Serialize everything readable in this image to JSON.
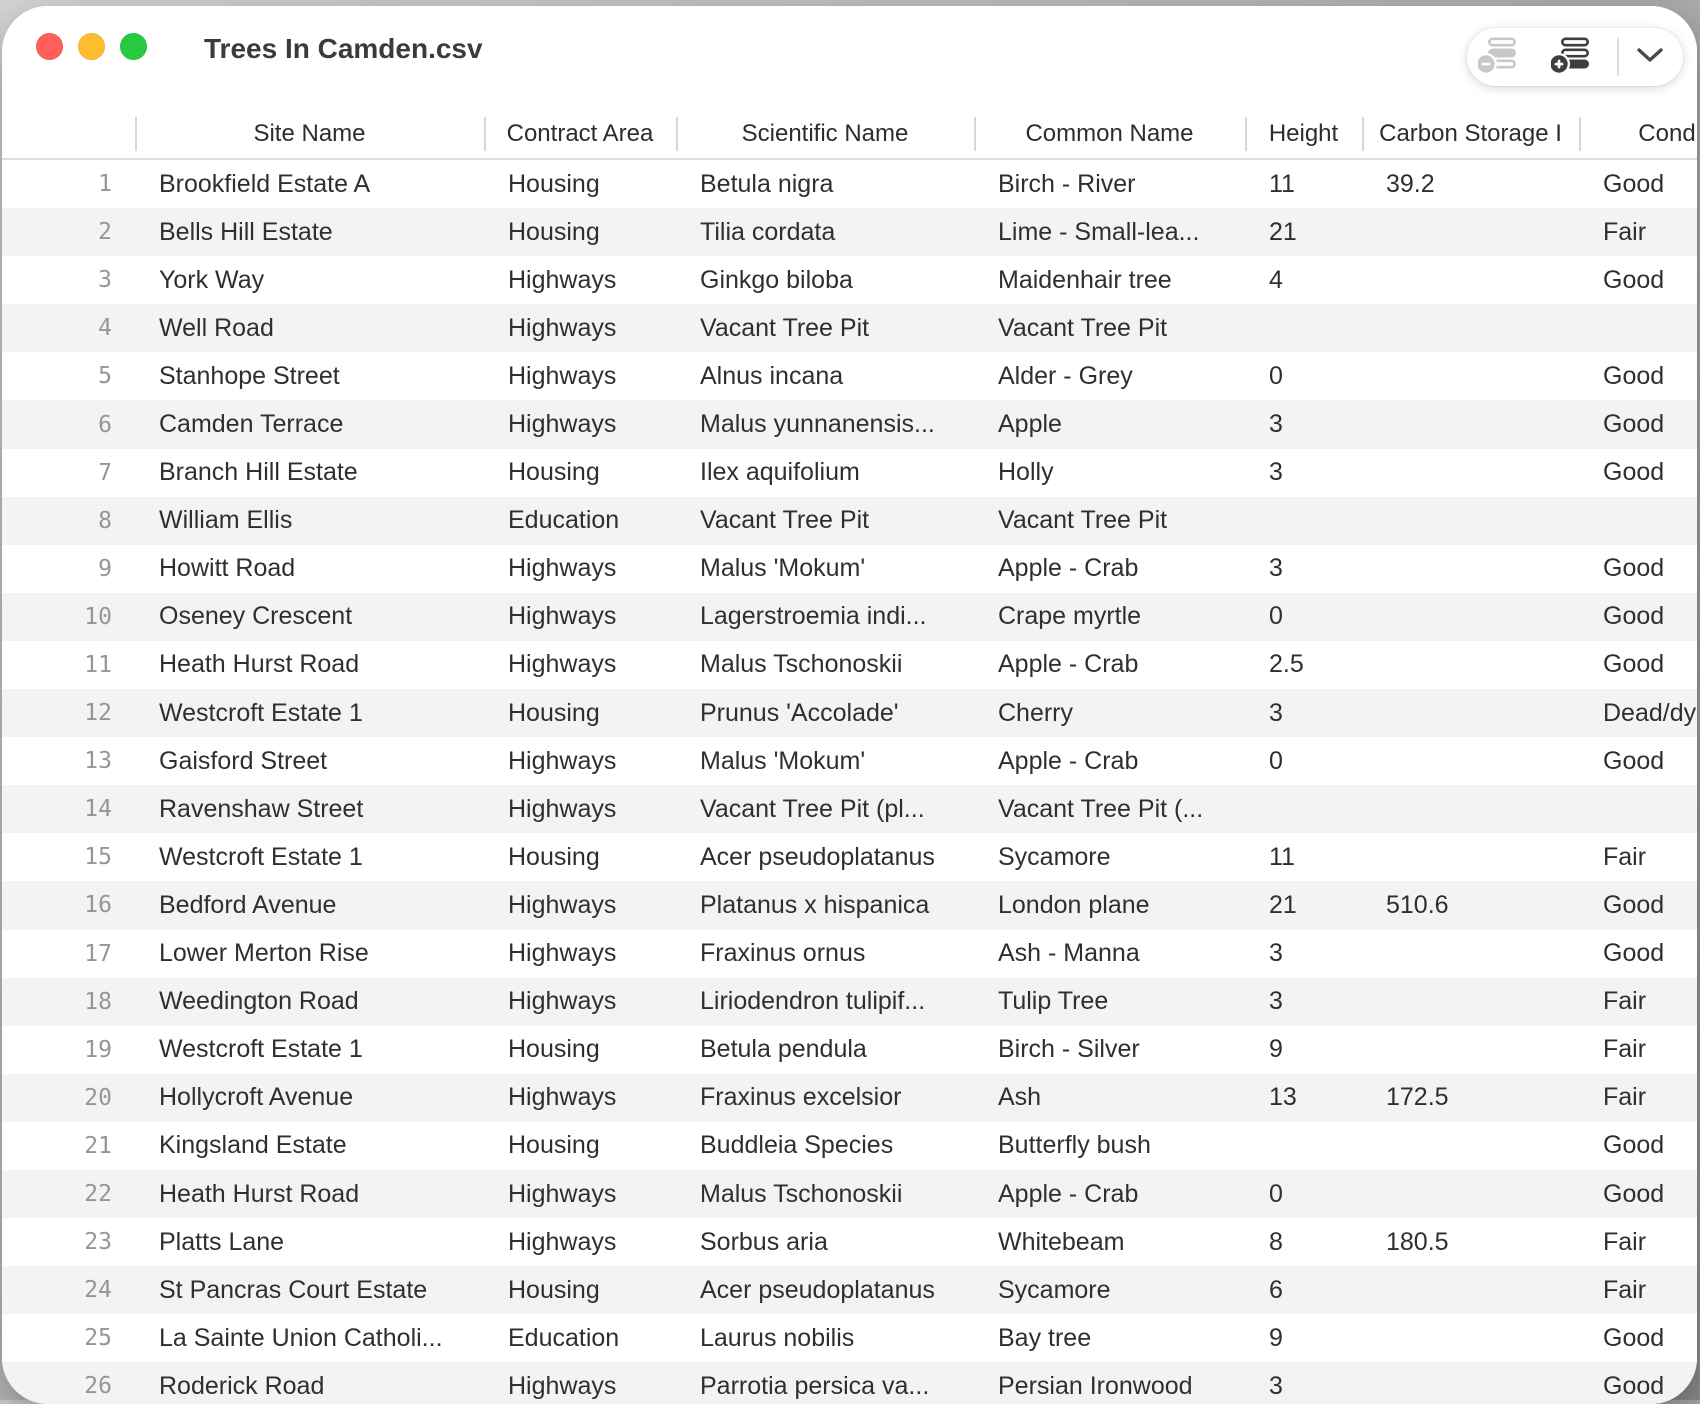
{
  "window": {
    "title": "Trees In Camden.csv",
    "traffic_lights": [
      "close",
      "minimize",
      "zoom"
    ],
    "toolbar": {
      "icons": [
        "remove-row-icon",
        "add-row-icon",
        "chevron-down-icon"
      ],
      "remove_row_disabled": true
    }
  },
  "colors": {
    "traffic_red": "#ff5f57",
    "traffic_yellow": "#febc2e",
    "traffic_green": "#28c840",
    "zebra_stripe": "#f3f3f3",
    "icon_disabled": "#c8c8c8",
    "icon_enabled": "#3e3e3e",
    "header_divider": "#d7d7d7"
  },
  "table": {
    "columns": [
      {
        "label": "Site Name"
      },
      {
        "label": "Contract Area"
      },
      {
        "label": "Scientific Name"
      },
      {
        "label": "Common Name"
      },
      {
        "label": "Height"
      },
      {
        "label": "Carbon Storage I"
      },
      {
        "label": "Condition"
      }
    ],
    "rows": [
      {
        "num": "1",
        "site": "Brookfield Estate A",
        "contract": "Housing",
        "scientific": "Betula nigra",
        "common": "Birch - River",
        "height": "11",
        "carbon": "39.2",
        "condition": "Good"
      },
      {
        "num": "2",
        "site": "Bells Hill Estate",
        "contract": "Housing",
        "scientific": "Tilia cordata",
        "common": "Lime - Small-lea...",
        "height": "21",
        "carbon": "",
        "condition": "Fair"
      },
      {
        "num": "3",
        "site": "York Way",
        "contract": "Highways",
        "scientific": "Ginkgo biloba",
        "common": "Maidenhair tree",
        "height": "4",
        "carbon": "",
        "condition": "Good"
      },
      {
        "num": "4",
        "site": "Well Road",
        "contract": "Highways",
        "scientific": "Vacant Tree Pit",
        "common": "Vacant Tree Pit",
        "height": "",
        "carbon": "",
        "condition": ""
      },
      {
        "num": "5",
        "site": "Stanhope Street",
        "contract": "Highways",
        "scientific": "Alnus incana",
        "common": "Alder - Grey",
        "height": "0",
        "carbon": "",
        "condition": "Good"
      },
      {
        "num": "6",
        "site": "Camden Terrace",
        "contract": "Highways",
        "scientific": "Malus yunnanensis...",
        "common": "Apple",
        "height": "3",
        "carbon": "",
        "condition": "Good"
      },
      {
        "num": "7",
        "site": "Branch Hill Estate",
        "contract": "Housing",
        "scientific": "Ilex aquifolium",
        "common": "Holly",
        "height": "3",
        "carbon": "",
        "condition": "Good"
      },
      {
        "num": "8",
        "site": "William Ellis",
        "contract": "Education",
        "scientific": "Vacant Tree Pit",
        "common": "Vacant Tree Pit",
        "height": "",
        "carbon": "",
        "condition": ""
      },
      {
        "num": "9",
        "site": "Howitt Road",
        "contract": "Highways",
        "scientific": "Malus 'Mokum'",
        "common": "Apple - Crab",
        "height": "3",
        "carbon": "",
        "condition": "Good"
      },
      {
        "num": "10",
        "site": "Oseney Crescent",
        "contract": "Highways",
        "scientific": "Lagerstroemia indi...",
        "common": "Crape myrtle",
        "height": "0",
        "carbon": "",
        "condition": "Good"
      },
      {
        "num": "11",
        "site": "Heath Hurst Road",
        "contract": "Highways",
        "scientific": "Malus Tschonoskii",
        "common": "Apple - Crab",
        "height": "2.5",
        "carbon": "",
        "condition": "Good"
      },
      {
        "num": "12",
        "site": "Westcroft Estate 1",
        "contract": "Housing",
        "scientific": "Prunus 'Accolade'",
        "common": "Cherry",
        "height": "3",
        "carbon": "",
        "condition": "Dead/dying"
      },
      {
        "num": "13",
        "site": "Gaisford Street",
        "contract": "Highways",
        "scientific": "Malus 'Mokum'",
        "common": "Apple - Crab",
        "height": "0",
        "carbon": "",
        "condition": "Good"
      },
      {
        "num": "14",
        "site": "Ravenshaw Street",
        "contract": "Highways",
        "scientific": "Vacant Tree Pit (pl...",
        "common": "Vacant Tree Pit (...",
        "height": "",
        "carbon": "",
        "condition": ""
      },
      {
        "num": "15",
        "site": "Westcroft Estate 1",
        "contract": "Housing",
        "scientific": "Acer pseudoplatanus",
        "common": "Sycamore",
        "height": "11",
        "carbon": "",
        "condition": "Fair"
      },
      {
        "num": "16",
        "site": "Bedford Avenue",
        "contract": "Highways",
        "scientific": "Platanus x hispanica",
        "common": "London plane",
        "height": "21",
        "carbon": "510.6",
        "condition": "Good"
      },
      {
        "num": "17",
        "site": "Lower Merton Rise",
        "contract": "Highways",
        "scientific": "Fraxinus ornus",
        "common": "Ash - Manna",
        "height": "3",
        "carbon": "",
        "condition": "Good"
      },
      {
        "num": "18",
        "site": "Weedington Road",
        "contract": "Highways",
        "scientific": "Liriodendron tulipif...",
        "common": "Tulip Tree",
        "height": "3",
        "carbon": "",
        "condition": "Fair"
      },
      {
        "num": "19",
        "site": "Westcroft Estate 1",
        "contract": "Housing",
        "scientific": "Betula pendula",
        "common": "Birch - Silver",
        "height": "9",
        "carbon": "",
        "condition": "Fair"
      },
      {
        "num": "20",
        "site": "Hollycroft Avenue",
        "contract": "Highways",
        "scientific": "Fraxinus excelsior",
        "common": "Ash",
        "height": "13",
        "carbon": "172.5",
        "condition": "Fair"
      },
      {
        "num": "21",
        "site": "Kingsland Estate",
        "contract": "Housing",
        "scientific": "Buddleia Species",
        "common": "Butterfly bush",
        "height": "",
        "carbon": "",
        "condition": "Good"
      },
      {
        "num": "22",
        "site": "Heath Hurst Road",
        "contract": "Highways",
        "scientific": "Malus Tschonoskii",
        "common": "Apple - Crab",
        "height": "0",
        "carbon": "",
        "condition": "Good"
      },
      {
        "num": "23",
        "site": "Platts Lane",
        "contract": "Highways",
        "scientific": "Sorbus aria",
        "common": "Whitebeam",
        "height": "8",
        "carbon": "180.5",
        "condition": "Fair"
      },
      {
        "num": "24",
        "site": "St Pancras Court Estate",
        "contract": "Housing",
        "scientific": "Acer pseudoplatanus",
        "common": "Sycamore",
        "height": "6",
        "carbon": "",
        "condition": "Fair"
      },
      {
        "num": "25",
        "site": "La Sainte Union Catholi...",
        "contract": "Education",
        "scientific": "Laurus nobilis",
        "common": "Bay tree",
        "height": "9",
        "carbon": "",
        "condition": "Good"
      },
      {
        "num": "26",
        "site": "Roderick Road",
        "contract": "Highways",
        "scientific": "Parrotia persica va...",
        "common": "Persian Ironwood",
        "height": "3",
        "carbon": "",
        "condition": "Good"
      }
    ]
  }
}
